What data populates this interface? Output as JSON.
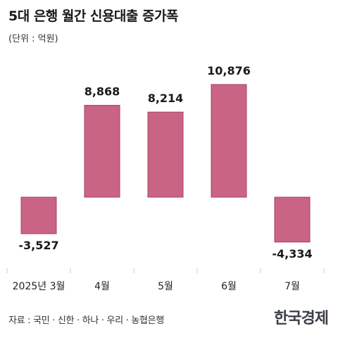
{
  "header": {
    "title": "5대 은행 월간 신용대출 증가폭",
    "unit": "(단위 : 억원)"
  },
  "footer": {
    "source": "자료 : 국민 · 신한 · 하나 · 우리 · 농협은행",
    "logo": "한국경제"
  },
  "chart_data": {
    "type": "bar",
    "categories": [
      "2025년 3월",
      "4월",
      "5월",
      "6월",
      "7월"
    ],
    "values": [
      -3527,
      8868,
      8214,
      10876,
      -4334
    ],
    "value_labels": [
      "-3,527",
      "8,868",
      "8,214",
      "10,876",
      "-4,334"
    ],
    "title": "5대 은행 월간 신용대출 증가폭",
    "ylabel": "",
    "xlabel": "",
    "ylim": [
      -5000,
      12000
    ],
    "grid": false,
    "bar_color": "#c96485"
  }
}
